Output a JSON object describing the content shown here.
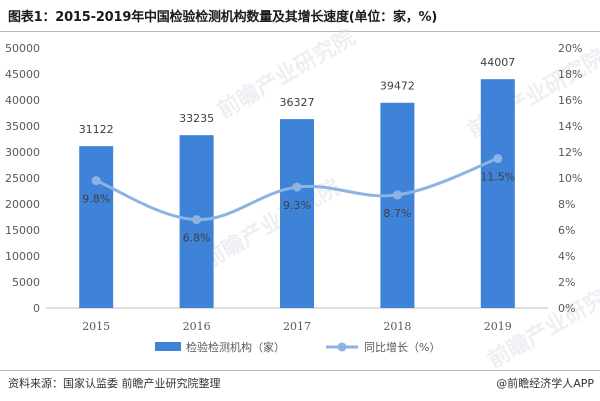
{
  "title": "图表1：2015-2019年中国检验检测机构数量及其增长速度(单位：家，%)",
  "source": "资料来源：国家认监委 前瞻产业研究院整理",
  "brand": "@前瞻经济学人APP",
  "watermark": "前瞻产业研究院",
  "colors": {
    "bar": "#3f83d8",
    "line": "#8db3e3",
    "axis": "#bfbfbf",
    "text": "#595959"
  },
  "chart_data": {
    "type": "bar",
    "categories": [
      "2015",
      "2016",
      "2017",
      "2018",
      "2019"
    ],
    "series": [
      {
        "name": "检验检测机构（家）",
        "kind": "bar",
        "axis": "left",
        "values": [
          31122,
          33235,
          36327,
          39472,
          44007
        ],
        "labels": [
          "31122",
          "33235",
          "36327",
          "39472",
          "44007"
        ]
      },
      {
        "name": "同比增长（%）",
        "kind": "line",
        "axis": "right",
        "values": [
          9.8,
          6.8,
          9.3,
          8.7,
          11.5
        ],
        "labels": [
          "9.8%",
          "6.8%",
          "9.3%",
          "8.7%",
          "11.5%"
        ]
      }
    ],
    "y_left": {
      "range": [
        0,
        50000
      ],
      "ticks": [
        "0",
        "5000",
        "10000",
        "15000",
        "20000",
        "25000",
        "30000",
        "35000",
        "40000",
        "45000",
        "50000"
      ]
    },
    "y_right": {
      "range": [
        0,
        20
      ],
      "ticks": [
        "0%",
        "2%",
        "4%",
        "6%",
        "8%",
        "10%",
        "12%",
        "14%",
        "16%",
        "18%",
        "20%"
      ]
    },
    "legend_position": "bottom",
    "grid": false
  }
}
